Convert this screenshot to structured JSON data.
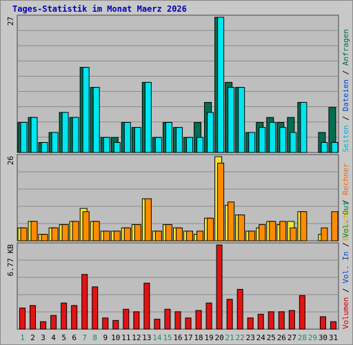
{
  "colors": {
    "page_bg": "#C8C8C8",
    "plot_bg": "#BEBEBE",
    "grid": "#8A8A8A",
    "title": "#0000B8",
    "weekday_label": "#000000",
    "weekend_label": "#1E8C5A",
    "hits_dark": "#006E50",
    "hits_light": "#00D2E6",
    "files_light": "#00E6F0",
    "pages_text": "#00B4DC",
    "files_text": "#0046C8",
    "visits_fill": "#F0E632",
    "sites_fill": "#FF8C00",
    "visits_text": "#DCB400",
    "sites_text": "#FF6400",
    "kb_fill": "#E11414",
    "kb_text": "#D20000",
    "volin_text": "#0046C8",
    "volout_text": "#008C50"
  },
  "chart_data": [
    {
      "type": "bar",
      "title": "Tages-Statistik im Monat Maerz 2026",
      "ylim": [
        0,
        27
      ],
      "y_max_label": "27",
      "grid": true,
      "legend_right": [
        "Anfragen",
        "/",
        "Dateien",
        "/",
        "Seiten"
      ],
      "categories": [
        "1",
        "2",
        "3",
        "4",
        "5",
        "6",
        "7",
        "8",
        "9",
        "10",
        "11",
        "12",
        "13",
        "14",
        "15",
        "16",
        "17",
        "18",
        "19",
        "20",
        "21",
        "22",
        "23",
        "24",
        "25",
        "26",
        "27",
        "28",
        "29",
        "30",
        "31"
      ],
      "weekend_days": [
        "1",
        "7",
        "8",
        "14",
        "15",
        "21",
        "22",
        "28",
        "29"
      ],
      "series": [
        {
          "name": "Anfragen",
          "values": [
            6,
            7,
            2,
            4,
            8,
            7,
            17,
            13,
            3,
            3,
            6,
            5,
            14,
            3,
            6,
            5,
            3,
            6,
            10,
            27,
            14,
            13,
            4,
            6,
            7,
            6,
            7,
            10,
            0,
            4,
            9
          ]
        },
        {
          "name": "Dateien",
          "values": [
            6,
            7,
            2,
            4,
            8,
            7,
            17,
            13,
            3,
            2,
            6,
            5,
            14,
            3,
            6,
            5,
            3,
            3,
            8,
            27,
            13,
            13,
            4,
            5,
            6,
            5,
            4,
            10,
            0,
            2,
            2
          ]
        }
      ]
    },
    {
      "type": "bar",
      "ylim": [
        0,
        26
      ],
      "y_max_label": "26",
      "grid": true,
      "legend_right": [
        "Rechner",
        "/",
        "Besuche"
      ],
      "categories": [
        "1",
        "2",
        "3",
        "4",
        "5",
        "6",
        "7",
        "8",
        "9",
        "10",
        "11",
        "12",
        "13",
        "14",
        "15",
        "16",
        "17",
        "18",
        "19",
        "20",
        "21",
        "22",
        "23",
        "24",
        "25",
        "26",
        "27",
        "28",
        "29",
        "30",
        "31"
      ],
      "series": [
        {
          "name": "Besuche",
          "values": [
            4,
            6,
            2,
            4,
            5,
            6,
            10,
            6,
            3,
            3,
            4,
            5,
            13,
            3,
            5,
            4,
            3,
            2,
            7,
            26,
            11,
            8,
            3,
            4,
            6,
            5,
            6,
            9,
            0,
            2,
            0
          ]
        },
        {
          "name": "Rechner",
          "values": [
            4,
            6,
            2,
            4,
            5,
            6,
            9,
            6,
            3,
            3,
            4,
            5,
            13,
            3,
            5,
            4,
            3,
            3,
            7,
            24,
            12,
            8,
            3,
            5,
            6,
            6,
            4,
            9,
            0,
            4,
            9
          ]
        }
      ]
    },
    {
      "type": "bar",
      "ylim": [
        0,
        6.77
      ],
      "y_max_label": "6.77 KB",
      "grid": true,
      "legend_right": [
        "Vol. Out",
        "/",
        "Vol. In",
        "/",
        "Volumen"
      ],
      "categories": [
        "1",
        "2",
        "3",
        "4",
        "5",
        "6",
        "7",
        "8",
        "9",
        "10",
        "11",
        "12",
        "13",
        "14",
        "15",
        "16",
        "17",
        "18",
        "19",
        "20",
        "21",
        "22",
        "23",
        "24",
        "25",
        "26",
        "27",
        "28",
        "29",
        "30",
        "31"
      ],
      "series": [
        {
          "name": "Volumen",
          "values": [
            1.7,
            1.9,
            0.6,
            1.1,
            2.1,
            1.9,
            4.4,
            3.4,
            0.9,
            0.7,
            1.6,
            1.4,
            3.7,
            0.8,
            1.6,
            1.4,
            0.9,
            1.5,
            2.1,
            6.77,
            2.4,
            3.2,
            0.9,
            1.2,
            1.4,
            1.4,
            1.5,
            2.7,
            0,
            1.0,
            0.6
          ]
        }
      ]
    }
  ]
}
